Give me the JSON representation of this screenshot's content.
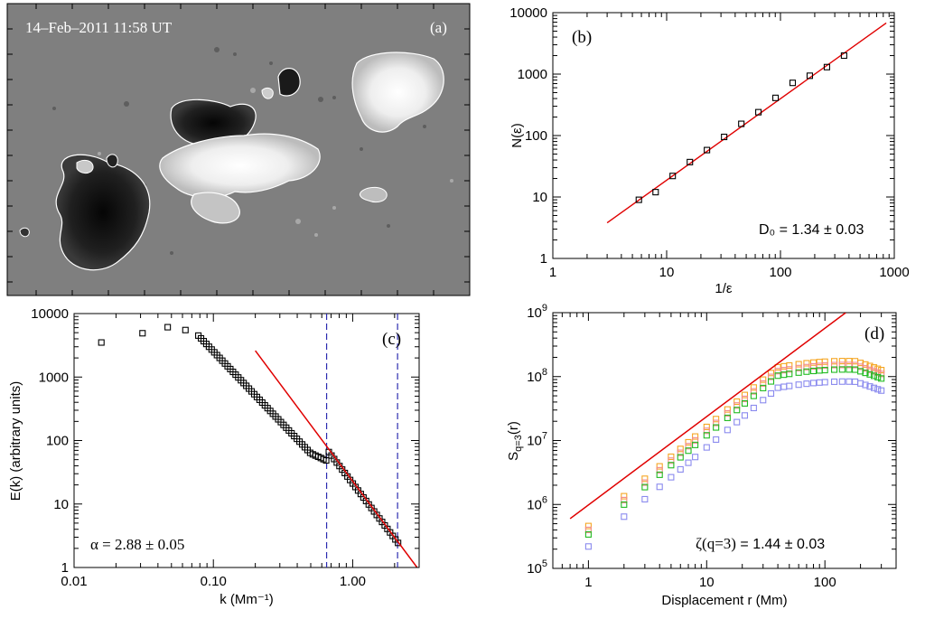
{
  "chart_data": [
    {
      "id": "a",
      "type": "image",
      "panel_label": "(a)",
      "timestamp": "14–Feb–2011 11:58 UT"
    },
    {
      "id": "b",
      "type": "scatter",
      "scale": "log-log",
      "panel_label": "(b)",
      "xlabel": "1/ε",
      "ylabel": "N(ε)",
      "xlim": [
        1,
        1000
      ],
      "ylim": [
        1,
        10000
      ],
      "xticks": [
        {
          "v": 1,
          "label": "1"
        },
        {
          "v": 10,
          "label": "10"
        },
        {
          "v": 100,
          "label": "100"
        },
        {
          "v": 1000,
          "label": "1000"
        }
      ],
      "yticks": [
        {
          "v": 1,
          "label": "1"
        },
        {
          "v": 10,
          "label": "10"
        },
        {
          "v": 100,
          "label": "100"
        },
        {
          "v": 1000,
          "label": "1000"
        },
        {
          "v": 10000,
          "label": "10000"
        }
      ],
      "points": {
        "x": [
          5.7,
          8.0,
          11.3,
          16,
          22.6,
          32,
          45.3,
          64,
          90.5,
          128,
          181,
          256,
          362
        ],
        "y": [
          9,
          12,
          22,
          37,
          58,
          95,
          155,
          240,
          410,
          720,
          940,
          1300,
          2000
        ]
      },
      "fit": {
        "x": [
          3,
          850
        ],
        "y": [
          3.8,
          6800
        ]
      },
      "annotation": "D₀ = 1.34 ± 0.03"
    },
    {
      "id": "c",
      "type": "scatter",
      "scale": "log-log",
      "panel_label": "(c)",
      "xlabel": "k (Mm⁻¹)",
      "ylabel": "E(k) (arbitrary units)",
      "xlim": [
        0.01,
        3.0
      ],
      "ylim": [
        1,
        10000
      ],
      "xticks": [
        {
          "v": 0.01,
          "label": "0.01"
        },
        {
          "v": 0.1,
          "label": "0.10"
        },
        {
          "v": 1,
          "label": "1.00"
        }
      ],
      "yticks": [
        {
          "v": 1,
          "label": "1"
        },
        {
          "v": 10,
          "label": "10"
        },
        {
          "v": 100,
          "label": "100"
        },
        {
          "v": 1000,
          "label": "1000"
        },
        {
          "v": 10000,
          "label": "10000"
        }
      ],
      "vlines": [
        0.65,
        2.1
      ],
      "fit": {
        "x": [
          0.2,
          2.9
        ],
        "y": [
          2600,
          1.0
        ]
      },
      "annotation": "α = 2.88 ± 0.05"
    },
    {
      "id": "d",
      "type": "scatter",
      "scale": "log-log",
      "panel_label": "(d)",
      "xlabel": "Displacement r (Mm)",
      "ylabel": "S_{q=3}(r)",
      "xlim": [
        0.5,
        400
      ],
      "ylim": [
        100000,
        1000000000
      ],
      "xticks": [
        {
          "v": 1,
          "label": "1"
        },
        {
          "v": 10,
          "label": "10"
        },
        {
          "v": 100,
          "label": "100"
        }
      ],
      "yticks": [
        {
          "v": 100000,
          "base": "10",
          "exp": "5"
        },
        {
          "v": 1000000,
          "base": "10",
          "exp": "6"
        },
        {
          "v": 10000000,
          "base": "10",
          "exp": "7"
        },
        {
          "v": 100000000,
          "base": "10",
          "exp": "8"
        },
        {
          "v": 1000000000,
          "base": "10",
          "exp": "9"
        }
      ],
      "fit": {
        "x": [
          0.7,
          150
        ],
        "y": [
          600000,
          1000000000
        ]
      },
      "series": [
        {
          "name": "orange",
          "color": "#f5a623"
        },
        {
          "name": "red",
          "color": "#f28a8a"
        },
        {
          "name": "green",
          "color": "#22bb22"
        },
        {
          "name": "blue",
          "color": "#8a8aee"
        }
      ],
      "annotation_lhs": "ζ(q=3)",
      "annotation_rhs": " = 1.44 ± 0.03"
    }
  ]
}
